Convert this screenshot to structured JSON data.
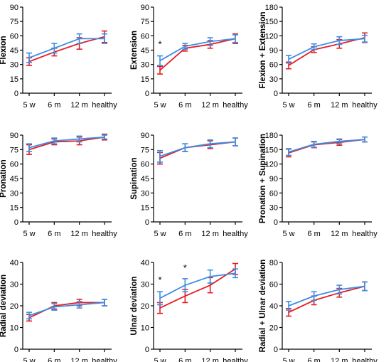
{
  "colors": {
    "series_a": "#e31e24",
    "series_b": "#3a8ee6",
    "axis": "#000000"
  },
  "chart_data": [
    {
      "type": "line",
      "ylabel": "Flexion",
      "categories": [
        "5 w",
        "6 m",
        "12 m",
        "healthy"
      ],
      "ylim": [
        0,
        90
      ],
      "yticks": [
        "0",
        "15",
        "30",
        "45",
        "60",
        "75",
        "90"
      ],
      "series": [
        {
          "color": "#e31e24",
          "values": [
            33,
            43,
            52,
            59
          ],
          "errors": [
            4,
            4,
            6,
            6
          ]
        },
        {
          "color": "#3a8ee6",
          "values": [
            37,
            47,
            57,
            57
          ],
          "errors": [
            5,
            5,
            5,
            5
          ]
        }
      ],
      "significance": []
    },
    {
      "type": "line",
      "ylabel": "Extension",
      "categories": [
        "5 w",
        "6 m",
        "12 m",
        "healthy"
      ],
      "ylim": [
        0,
        90
      ],
      "yticks": [
        "0",
        "15",
        "30",
        "45",
        "60",
        "75",
        "90"
      ],
      "series": [
        {
          "color": "#e31e24",
          "values": [
            24,
            47,
            51,
            57
          ],
          "errors": [
            4,
            3,
            4,
            5
          ]
        },
        {
          "color": "#3a8ee6",
          "values": [
            34,
            49,
            54,
            57
          ],
          "errors": [
            5,
            3,
            4,
            4
          ]
        }
      ],
      "significance": [
        "*",
        "",
        "",
        ""
      ]
    },
    {
      "type": "line",
      "ylabel": "Flexion + Extension",
      "categories": [
        "5 w",
        "6 m",
        "12 m",
        "healthy"
      ],
      "ylim": [
        0,
        180
      ],
      "yticks": [
        "0",
        "30",
        "60",
        "90",
        "120",
        "150",
        "180"
      ],
      "series": [
        {
          "color": "#e31e24",
          "values": [
            58,
            91,
            103,
            116
          ],
          "errors": [
            7,
            6,
            9,
            10
          ]
        },
        {
          "color": "#3a8ee6",
          "values": [
            71,
            97,
            110,
            114
          ],
          "errors": [
            8,
            6,
            8,
            7
          ]
        }
      ],
      "significance": []
    },
    {
      "type": "line",
      "ylabel": "Pronation",
      "categories": [
        "5 w",
        "6 m",
        "12 m",
        "healthy"
      ],
      "ylim": [
        0,
        90
      ],
      "yticks": [
        "0",
        "15",
        "30",
        "45",
        "60",
        "75",
        "90"
      ],
      "series": [
        {
          "color": "#e31e24",
          "values": [
            75,
            83,
            84,
            88
          ],
          "errors": [
            5,
            3,
            4,
            3
          ]
        },
        {
          "color": "#3a8ee6",
          "values": [
            77,
            84,
            86,
            88
          ],
          "errors": [
            4,
            3,
            3,
            2
          ]
        }
      ],
      "significance": []
    },
    {
      "type": "line",
      "ylabel": "Supination",
      "categories": [
        "5 w",
        "6 m",
        "12 m",
        "healthy"
      ],
      "ylim": [
        0,
        90
      ],
      "yticks": [
        "0",
        "15",
        "30",
        "45",
        "60",
        "75",
        "90"
      ],
      "series": [
        {
          "color": "#e31e24",
          "values": [
            66,
            77,
            80,
            83
          ],
          "errors": [
            6,
            4,
            4,
            4
          ]
        },
        {
          "color": "#3a8ee6",
          "values": [
            68,
            77,
            81,
            83
          ],
          "errors": [
            6,
            4,
            4,
            4
          ]
        }
      ],
      "significance": []
    },
    {
      "type": "line",
      "ylabel": "Pronation + Supination",
      "categories": [
        "5 w",
        "6 m",
        "12 m",
        "healthy"
      ],
      "ylim": [
        0,
        180
      ],
      "yticks": [
        "0",
        "30",
        "60",
        "90",
        "120",
        "150",
        "180"
      ],
      "series": [
        {
          "color": "#e31e24",
          "values": [
            143,
            160,
            165,
            171
          ],
          "errors": [
            8,
            6,
            6,
            5
          ]
        },
        {
          "color": "#3a8ee6",
          "values": [
            145,
            161,
            167,
            171
          ],
          "errors": [
            7,
            6,
            5,
            5
          ]
        }
      ],
      "significance": []
    },
    {
      "type": "line",
      "ylabel": "Radial deviation",
      "categories": [
        "5 w",
        "6 m",
        "12 m",
        "healthy"
      ],
      "ylim": [
        0,
        40
      ],
      "yticks": [
        "0",
        "10",
        "20",
        "30",
        "40"
      ],
      "series": [
        {
          "color": "#e31e24",
          "values": [
            14.5,
            20,
            21.5,
            21.5
          ],
          "errors": [
            1.5,
            1.5,
            1.5,
            1.5
          ]
        },
        {
          "color": "#3a8ee6",
          "values": [
            15.5,
            19.5,
            20.5,
            21.5
          ],
          "errors": [
            1.5,
            1.5,
            1.5,
            1.5
          ]
        }
      ],
      "significance": []
    },
    {
      "type": "line",
      "ylabel": "Ulnar deviation",
      "categories": [
        "5 w",
        "6 m",
        "12 m",
        "healthy"
      ],
      "ylim": [
        0,
        40
      ],
      "yticks": [
        "0",
        "10",
        "20",
        "30",
        "40"
      ],
      "series": [
        {
          "color": "#e31e24",
          "values": [
            19,
            24.5,
            29.5,
            37
          ],
          "errors": [
            2.5,
            3,
            3.5,
            2.5
          ]
        },
        {
          "color": "#3a8ee6",
          "values": [
            23.5,
            29.5,
            33.5,
            35
          ],
          "errors": [
            3,
            3,
            3,
            2
          ]
        }
      ],
      "significance": [
        "*",
        "*",
        "",
        ""
      ]
    },
    {
      "type": "line",
      "ylabel": "Radial + Ulnar deviation",
      "categories": [
        "5 w",
        "6 m",
        "12 m",
        "healthy"
      ],
      "ylim": [
        0,
        80
      ],
      "yticks": [
        "0",
        "20",
        "40",
        "60",
        "80"
      ],
      "series": [
        {
          "color": "#e31e24",
          "values": [
            34,
            45,
            52,
            58
          ],
          "errors": [
            3.5,
            4,
            4,
            4
          ]
        },
        {
          "color": "#3a8ee6",
          "values": [
            40,
            49,
            55,
            58
          ],
          "errors": [
            4,
            4,
            4,
            4
          ]
        }
      ],
      "significance": []
    }
  ]
}
